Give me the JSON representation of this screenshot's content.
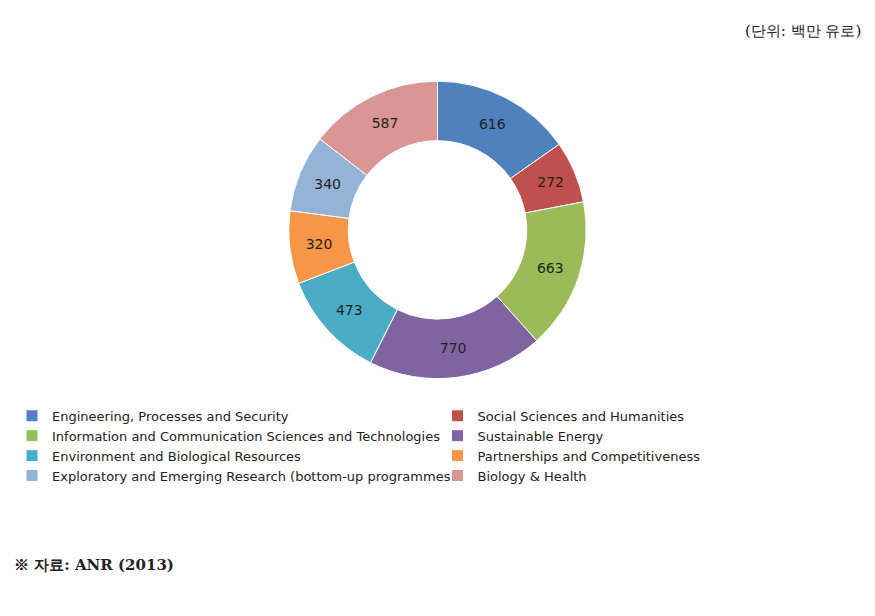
{
  "chart_data": {
    "type": "pie",
    "categories": [
      "Engineering, Processes and Security",
      "Social Sciences and Humanities",
      "Information and Communication Sciences and Technologies",
      "Sustainable Energy",
      "Environment and Biological Resources",
      "Partnerships and Competitiveness",
      "Exploratory and Emerging Research (bottom-up programmes)",
      "Biology & Health"
    ],
    "values": [
      616,
      272,
      663,
      770,
      473,
      320,
      340,
      587
    ],
    "colors": [
      "#4f81bd",
      "#c0504d",
      "#9bbb59",
      "#8064a2",
      "#4bacc6",
      "#f79646",
      "#95b3d7",
      "#d99694"
    ],
    "annotations": [
      "(단위: 백만 유로)",
      "※ 자료: ANR (2013)"
    ],
    "data_labels": true,
    "legend": "bottom"
  }
}
